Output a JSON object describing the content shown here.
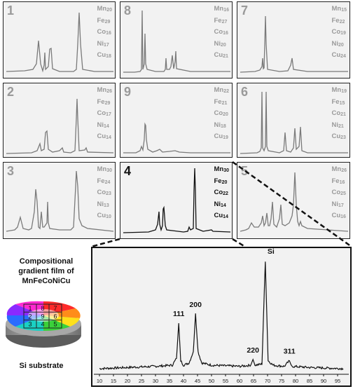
{
  "panels": [
    {
      "id": "1",
      "comp": [
        [
          "Mn",
          "20"
        ],
        [
          "Fe",
          "29"
        ],
        [
          "Co",
          "16"
        ],
        [
          "Ni",
          "17"
        ],
        [
          "Cu",
          "18"
        ]
      ]
    },
    {
      "id": "8",
      "comp": [
        [
          "Mn",
          "16"
        ],
        [
          "Fe",
          "27"
        ],
        [
          "Co",
          "16"
        ],
        [
          "Ni",
          "20"
        ],
        [
          "Cu",
          "21"
        ]
      ]
    },
    {
      "id": "7",
      "comp": [
        [
          "Mn",
          "15"
        ],
        [
          "Fe",
          "22"
        ],
        [
          "Co",
          "19"
        ],
        [
          "Ni",
          "20"
        ],
        [
          "Cu",
          "24"
        ]
      ]
    },
    {
      "id": "2",
      "comp": [
        [
          "Mn",
          "26"
        ],
        [
          "Fe",
          "29"
        ],
        [
          "Co",
          "17"
        ],
        [
          "Ni",
          "14"
        ],
        [
          "Cu",
          "14"
        ]
      ]
    },
    {
      "id": "9",
      "comp": [
        [
          "Mn",
          "22"
        ],
        [
          "Fe",
          "21"
        ],
        [
          "Co",
          "20"
        ],
        [
          "Ni",
          "18"
        ],
        [
          "Cu",
          "19"
        ]
      ]
    },
    {
      "id": "6",
      "comp": [
        [
          "Mn",
          "19"
        ],
        [
          "Fe",
          "15"
        ],
        [
          "Co",
          "21"
        ],
        [
          "Ni",
          "21"
        ],
        [
          "Cu",
          "23"
        ]
      ]
    },
    {
      "id": "3",
      "comp": [
        [
          "Mn",
          "30"
        ],
        [
          "Fe",
          "24"
        ],
        [
          "Co",
          "23"
        ],
        [
          "Ni",
          "13"
        ],
        [
          "Cu",
          "10"
        ]
      ]
    },
    {
      "id": "4",
      "comp": [
        [
          "Mn",
          "30"
        ],
        [
          "Fe",
          "20"
        ],
        [
          "Co",
          "22"
        ],
        [
          "Ni",
          "14"
        ],
        [
          "Cu",
          "14"
        ]
      ]
    },
    {
      "id": "5",
      "comp": [
        [
          "Mn",
          "26"
        ],
        [
          "Fe",
          "16"
        ],
        [
          "Co",
          "25"
        ],
        [
          "Ni",
          "17"
        ],
        [
          "Cu",
          "16"
        ]
      ]
    }
  ],
  "caption": [
    "Compositional",
    "gradient film of",
    "MnFeCoNiCu"
  ],
  "substrate_label": "Si substrate",
  "grid_labels": [
    "1",
    "8",
    "7",
    "2",
    "9",
    "6",
    "3",
    "4",
    "5"
  ],
  "chart_data": {
    "type": "line",
    "series": [
      {
        "name": "",
        "points": [
          [
            10,
            0.05
          ],
          [
            20,
            0.06
          ],
          [
            30,
            0.07
          ],
          [
            36,
            0.08
          ],
          [
            37.5,
            0.14
          ],
          [
            38.3,
            0.45
          ],
          [
            39,
            0.12
          ],
          [
            40,
            0.08
          ],
          [
            42,
            0.1
          ],
          [
            43.5,
            0.2
          ],
          [
            44.3,
            0.53
          ],
          [
            45.2,
            0.2
          ],
          [
            46.5,
            0.1
          ],
          [
            50,
            0.08
          ],
          [
            60,
            0.07
          ],
          [
            64,
            0.08
          ],
          [
            64.8,
            0.13
          ],
          [
            65.5,
            0.08
          ],
          [
            68,
            0.09
          ],
          [
            69.2,
            1.0
          ],
          [
            70.2,
            0.12
          ],
          [
            72,
            0.08
          ],
          [
            76,
            0.07
          ],
          [
            77.8,
            0.12
          ],
          [
            78.6,
            0.07
          ],
          [
            85,
            0.06
          ],
          [
            97,
            0.05
          ]
        ]
      }
    ],
    "peaks": [
      {
        "label": "111",
        "x": 38.3
      },
      {
        "label": "200",
        "x": 44.3
      },
      {
        "label": "Si",
        "x": 69.2
      },
      {
        "label": "220",
        "x": 64.8
      },
      {
        "label": "311",
        "x": 77.8
      }
    ],
    "x_ticks": [
      10,
      15,
      20,
      25,
      30,
      35,
      40,
      45,
      50,
      55,
      60,
      65,
      70,
      75,
      80,
      85,
      90,
      95
    ],
    "xlim": [
      8,
      99
    ]
  }
}
